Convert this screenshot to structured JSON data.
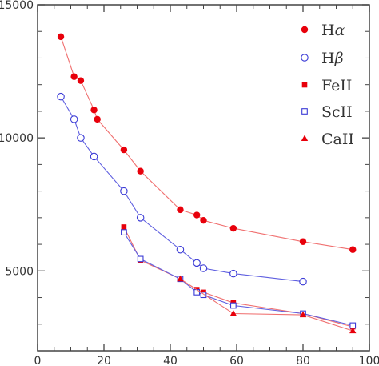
{
  "chart_data": {
    "type": "scatter",
    "title": "",
    "xlabel": "",
    "ylabel": "",
    "xlim": [
      0,
      100
    ],
    "ylim": [
      2000,
      15000
    ],
    "x_ticks": [
      0,
      20,
      40,
      60,
      80,
      100
    ],
    "y_ticks": [
      5000,
      10000,
      15000
    ],
    "x_tick_labels": [
      "0",
      "20",
      "40",
      "60",
      "80",
      "100"
    ],
    "y_tick_labels": [
      "5000",
      "10000",
      "15000"
    ],
    "grid": false,
    "legend_position": "top-right",
    "series": [
      {
        "name": "Hα",
        "legend_base": "H",
        "legend_sup": "α",
        "marker": "circle-filled",
        "color": "#e8000b",
        "line_color": "#f07070",
        "x": [
          7,
          11,
          13,
          17,
          18,
          26,
          31,
          43,
          48,
          50,
          59,
          80,
          95
        ],
        "y": [
          13800,
          12300,
          12150,
          11050,
          10700,
          9550,
          8750,
          7300,
          7100,
          6900,
          6600,
          6100,
          5800
        ]
      },
      {
        "name": "Hβ",
        "legend_base": "H",
        "legend_sup": "β",
        "marker": "circle-open",
        "color": "#3b3bd6",
        "line_color": "#6060e0",
        "x": [
          7,
          11,
          13,
          17,
          26,
          31,
          43,
          48,
          50,
          59,
          80
        ],
        "y": [
          11550,
          10700,
          10000,
          9300,
          8000,
          7000,
          5800,
          5300,
          5100,
          4900,
          4600
        ]
      },
      {
        "name": "FeII",
        "legend_base": "FeII",
        "legend_sup": "",
        "marker": "square-filled",
        "color": "#e8000b",
        "line_color": "#f07070",
        "x": [
          26,
          31,
          43,
          48,
          50,
          59,
          80,
          95
        ],
        "y": [
          6650,
          5400,
          4700,
          4300,
          4200,
          3800,
          3400,
          2900
        ]
      },
      {
        "name": "ScII",
        "legend_base": "ScII",
        "legend_sup": "",
        "marker": "square-open",
        "color": "#3b3bd6",
        "line_color": "#6060e0",
        "x": [
          26,
          31,
          43,
          48,
          50,
          59,
          80,
          95
        ],
        "y": [
          6450,
          5450,
          4700,
          4200,
          4100,
          3700,
          3400,
          2950
        ]
      },
      {
        "name": "CaII",
        "legend_base": "CaII",
        "legend_sup": "",
        "marker": "triangle-filled",
        "color": "#e8000b",
        "line_color": "#f07070",
        "x": [
          43,
          59,
          80,
          95
        ],
        "y": [
          4700,
          3400,
          3350,
          2750
        ]
      }
    ]
  }
}
